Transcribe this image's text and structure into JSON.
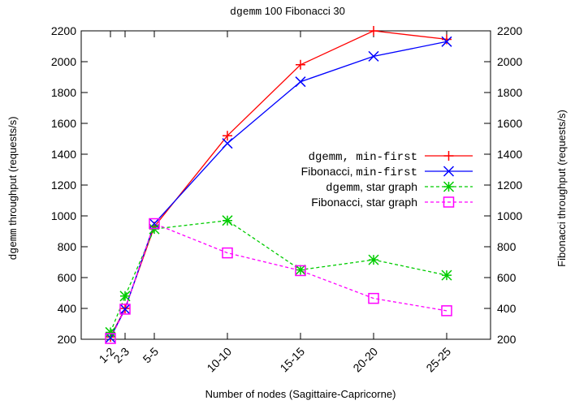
{
  "chart_data": {
    "type": "line",
    "title": {
      "mono": "dgemm",
      "rest": " 100 Fibonacci 30"
    },
    "xlabel": "Number of nodes (Sagittaire-Capricorne)",
    "ylabel_left": {
      "mono": "dgemm",
      "rest": " throughput (requests/s)"
    },
    "ylabel_right": "Fibonacci throughput (requests/s)",
    "x_categories": [
      "1-2",
      "2-3",
      "5-5",
      "10-10",
      "15-15",
      "20-20",
      "25-25"
    ],
    "x_positions": [
      2,
      3,
      5,
      10,
      15,
      20,
      25
    ],
    "ylim": [
      200,
      2200
    ],
    "yticks": [
      200,
      400,
      600,
      800,
      1000,
      1200,
      1400,
      1600,
      1800,
      2000,
      2200
    ],
    "grid": false,
    "legend_position": "center-right",
    "series": [
      {
        "legend": [
          {
            "text": "dgemm, min-first",
            "mono": true
          }
        ],
        "color": "#ff0000",
        "marker": "plus",
        "dashed": false,
        "values": [
          215,
          400,
          930,
          1520,
          1980,
          2200,
          2145
        ]
      },
      {
        "legend": [
          {
            "text": "Fibonacci, ",
            "mono": false
          },
          {
            "text": "min-first",
            "mono": true
          }
        ],
        "color": "#0000ff",
        "marker": "x",
        "dashed": false,
        "values": [
          210,
          395,
          950,
          1470,
          1870,
          2035,
          2130
        ]
      },
      {
        "legend": [
          {
            "text": "dgemm",
            "mono": true
          },
          {
            "text": ", star graph",
            "mono": false
          }
        ],
        "color": "#00cc00",
        "marker": "star",
        "dashed": true,
        "values": [
          245,
          480,
          915,
          970,
          650,
          715,
          615
        ]
      },
      {
        "legend": [
          {
            "text": "Fibonacci, star graph",
            "mono": false
          }
        ],
        "color": "#ff00ff",
        "marker": "square",
        "dashed": true,
        "values": [
          205,
          395,
          950,
          760,
          645,
          465,
          385
        ]
      }
    ]
  }
}
